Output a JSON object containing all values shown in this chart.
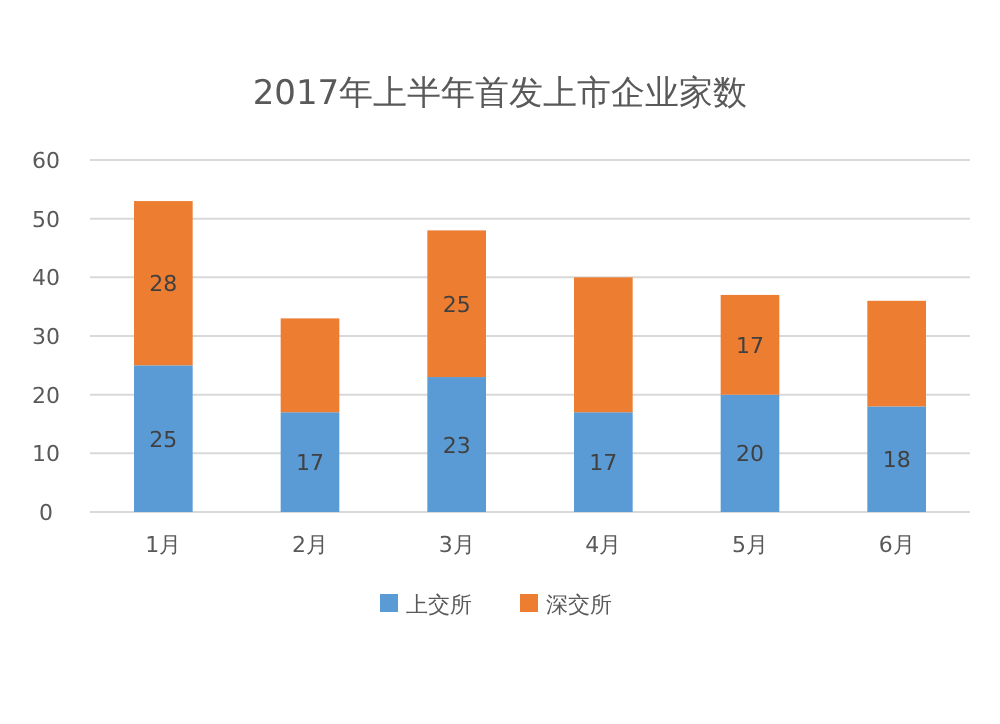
{
  "chart_data": {
    "type": "bar",
    "title": "2017年上半年首发上市企业家数",
    "categories": [
      "1月",
      "2月",
      "3月",
      "4月",
      "5月",
      "6月"
    ],
    "stacked": true,
    "series": [
      {
        "name": "上交所",
        "color": "#5b9bd5",
        "values": [
          25,
          17,
          23,
          17,
          20,
          18
        ],
        "value_labels": [
          "25",
          "17",
          "23",
          "17",
          "20",
          "18"
        ]
      },
      {
        "name": "深交所",
        "color": "#ed7d31",
        "values": [
          28,
          16,
          25,
          23,
          17,
          18
        ],
        "value_labels": [
          "28",
          null,
          "25",
          null,
          "17",
          null
        ]
      }
    ],
    "ylim": [
      0,
      60
    ],
    "yticks": [
      0,
      10,
      20,
      30,
      40,
      50,
      60
    ],
    "grid": "y",
    "legend": "bottom"
  }
}
